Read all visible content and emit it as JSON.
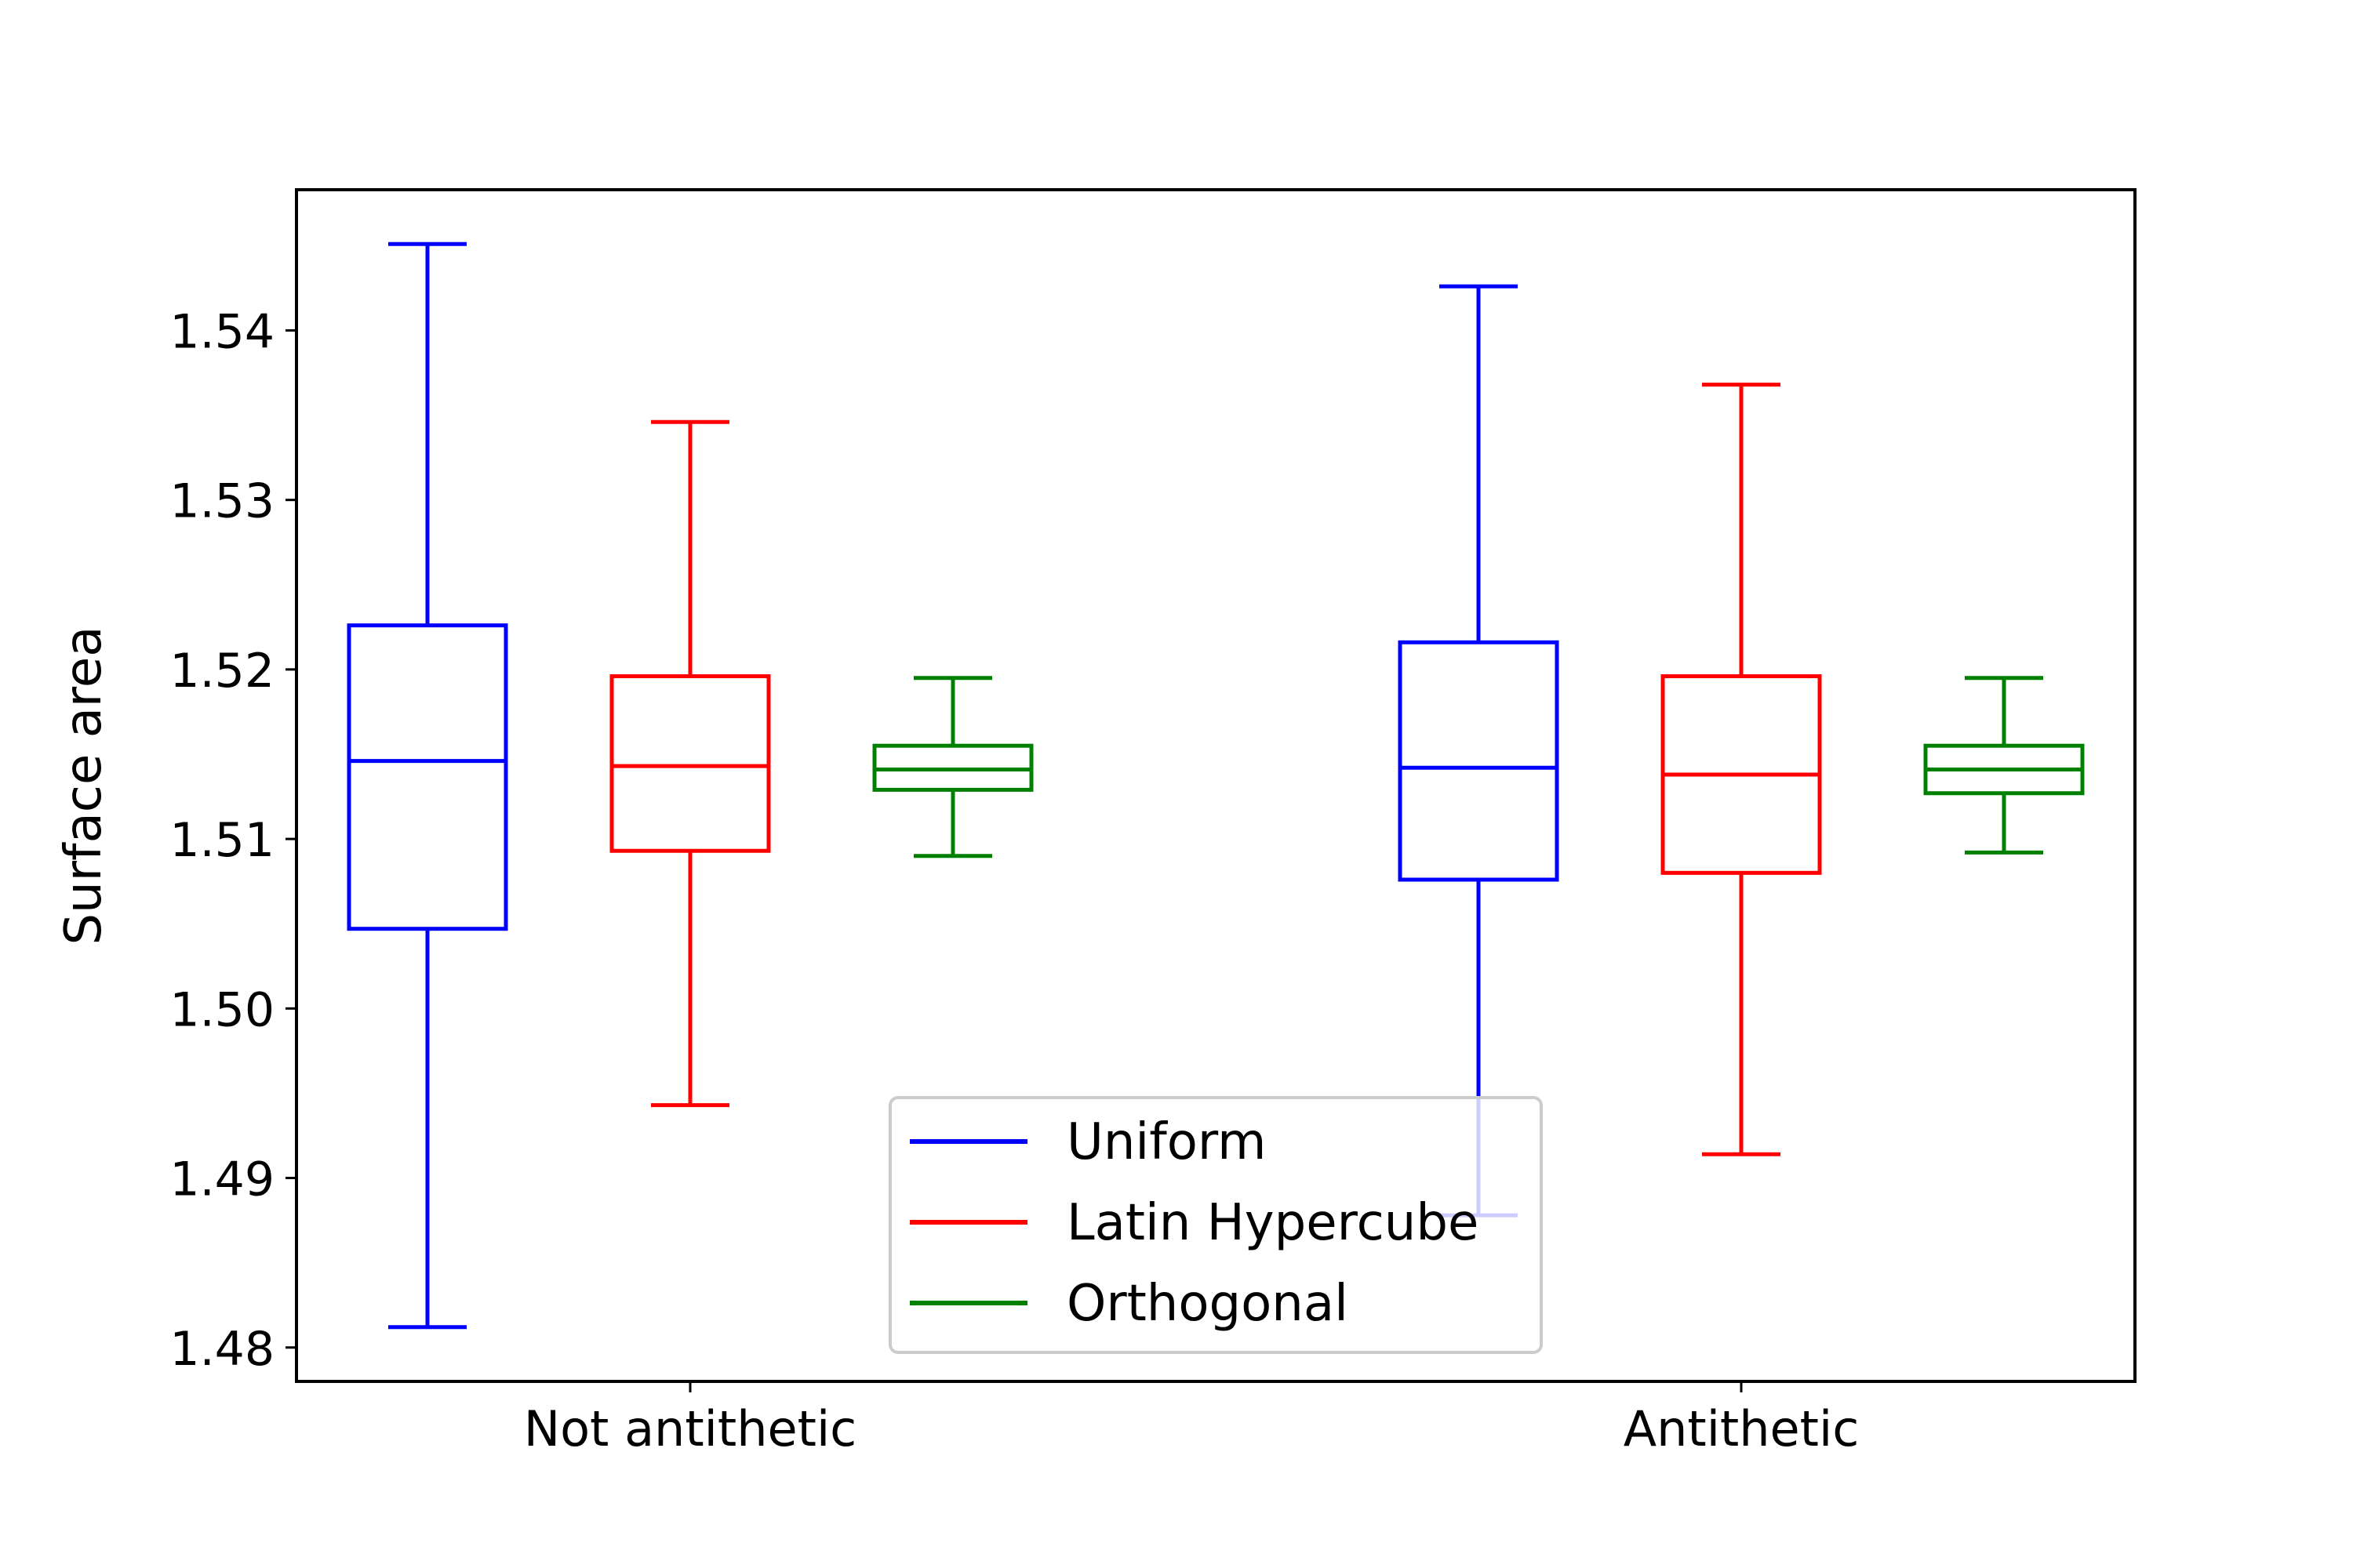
{
  "chart_data": {
    "type": "box",
    "ylabel": "Surface area",
    "xlabel": "",
    "ylim": [
      1.478,
      1.5483
    ],
    "yticks": [
      1.48,
      1.49,
      1.5,
      1.51,
      1.52,
      1.53,
      1.54
    ],
    "ytick_labels": [
      "1.48",
      "1.49",
      "1.50",
      "1.51",
      "1.52",
      "1.53",
      "1.54"
    ],
    "categories": [
      "Not antithetic",
      "Antithetic"
    ],
    "legend_position": "lower-center",
    "grid": false,
    "series": [
      {
        "name": "Uniform",
        "color": "#0000ff",
        "boxes": [
          {
            "whisker_low": 1.4812,
            "q1": 1.5047,
            "median": 1.5146,
            "q3": 1.5226,
            "whisker_high": 1.5451
          },
          {
            "whisker_low": 1.4878,
            "q1": 1.5076,
            "median": 1.5142,
            "q3": 1.5216,
            "whisker_high": 1.5426
          }
        ]
      },
      {
        "name": "Latin Hypercube",
        "color": "#ff0000",
        "boxes": [
          {
            "whisker_low": 1.4943,
            "q1": 1.5093,
            "median": 1.5143,
            "q3": 1.5196,
            "whisker_high": 1.5346
          },
          {
            "whisker_low": 1.4914,
            "q1": 1.508,
            "median": 1.5138,
            "q3": 1.5196,
            "whisker_high": 1.5368
          }
        ]
      },
      {
        "name": "Orthogonal",
        "color": "#008000",
        "boxes": [
          {
            "whisker_low": 1.509,
            "q1": 1.5129,
            "median": 1.5141,
            "q3": 1.5155,
            "whisker_high": 1.5195
          },
          {
            "whisker_low": 1.5092,
            "q1": 1.5127,
            "median": 1.5141,
            "q3": 1.5155,
            "whisker_high": 1.5195
          }
        ]
      }
    ]
  }
}
